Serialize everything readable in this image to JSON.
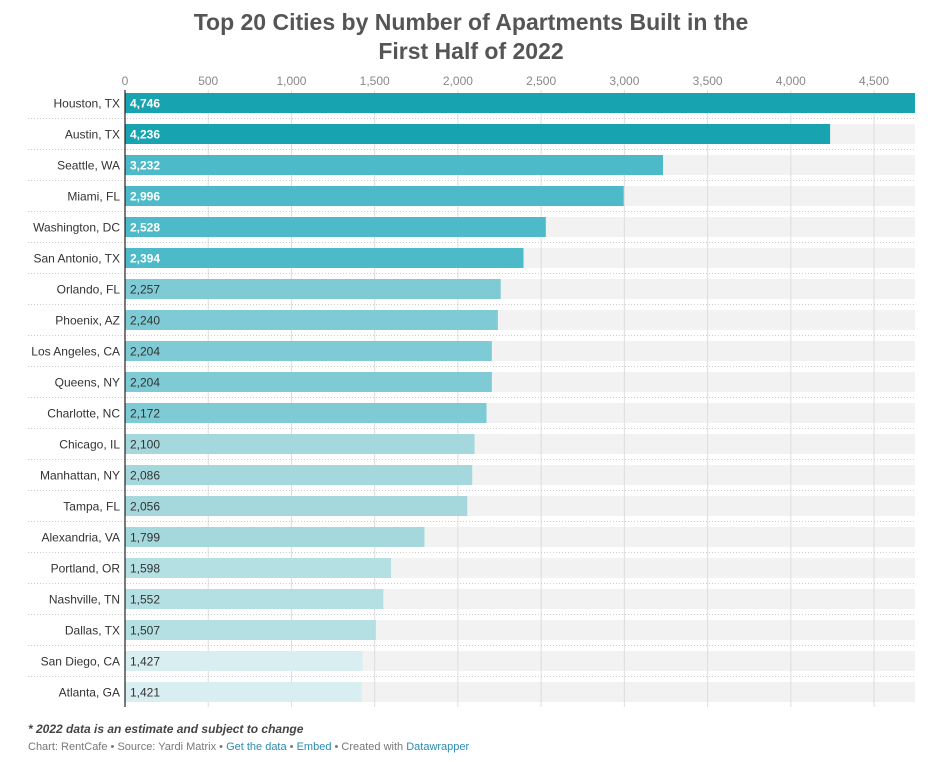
{
  "chart_data": {
    "type": "bar",
    "orientation": "horizontal",
    "title_lines": [
      "Top 20 Cities by Number of Apartments Built in the",
      "First Half of 2022"
    ],
    "xlim": [
      0,
      4746
    ],
    "x_ticks": [
      0,
      500,
      1000,
      1500,
      2000,
      2500,
      3000,
      3500,
      4000,
      4500
    ],
    "x_tick_labels": [
      "0",
      "500",
      "1,000",
      "1,500",
      "2,000",
      "2,500",
      "3,000",
      "3,500",
      "4,000",
      "4,500"
    ],
    "categories": [
      "Houston, TX",
      "Austin, TX",
      "Seattle, WA",
      "Miami, FL",
      "Washington, DC",
      "San Antonio, TX",
      "Orlando, FL",
      "Phoenix, AZ",
      "Los Angeles, CA",
      "Queens, NY",
      "Charlotte, NC",
      "Chicago, IL",
      "Manhattan, NY",
      "Tampa, FL",
      "Alexandria, VA",
      "Portland, OR",
      "Nashville, TN",
      "Dallas, TX",
      "San Diego, CA",
      "Atlanta, GA"
    ],
    "values": [
      4746,
      4236,
      3232,
      2996,
      2528,
      2394,
      2257,
      2240,
      2204,
      2204,
      2172,
      2100,
      2086,
      2056,
      1799,
      1598,
      1552,
      1507,
      1427,
      1421
    ],
    "value_labels": [
      "4,746",
      "4,236",
      "3,232",
      "2,996",
      "2,528",
      "2,394",
      "2,257",
      "2,240",
      "2,204",
      "2,204",
      "2,172",
      "2,100",
      "2,086",
      "2,056",
      "1,799",
      "1,598",
      "1,552",
      "1,507",
      "1,427",
      "1,421"
    ],
    "bar_colors": [
      "#17a3b0",
      "#17a3b0",
      "#4cbac8",
      "#4cbac8",
      "#4cbac8",
      "#4cbac8",
      "#7ecbd5",
      "#7ecbd5",
      "#7ecbd5",
      "#7ecbd5",
      "#7ecbd5",
      "#a5d8dd",
      "#a5d8dd",
      "#a5d8dd",
      "#a5d8dd",
      "#b4e0e3",
      "#b4e0e3",
      "#b4e0e3",
      "#d9eef0",
      "#d9eef0"
    ],
    "white_label_count": 6,
    "background_track_color": "#f2f2f2",
    "grid": true
  },
  "footnote": "* 2022 data is an estimate and subject to change",
  "credits": {
    "chart_by": "Chart: RentCafe",
    "sep1": " • ",
    "source": "Source: Yardi Matrix",
    "sep2": " • ",
    "get_data": "Get the data",
    "sep3": " • ",
    "embed": "Embed",
    "sep4": " • ",
    "created_with": "Created with ",
    "datawrapper": "Datawrapper"
  }
}
